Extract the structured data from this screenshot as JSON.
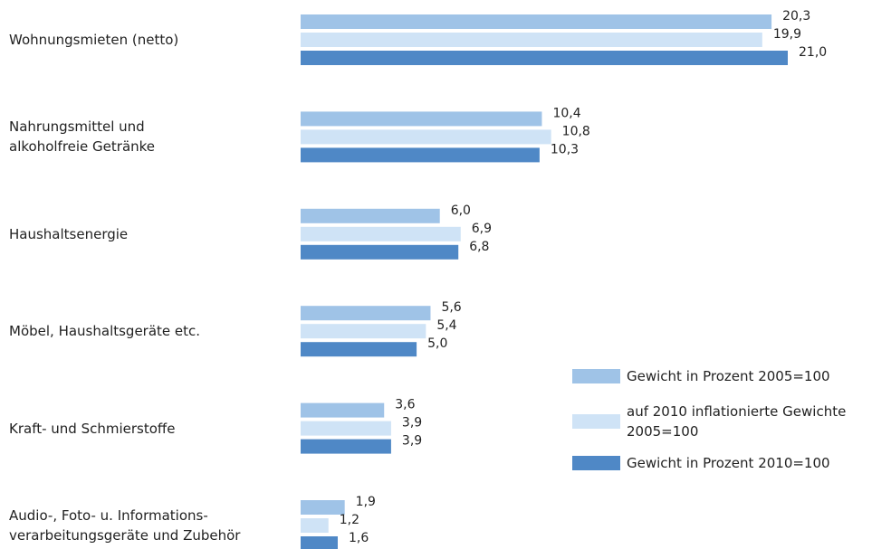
{
  "chart_data": {
    "type": "bar",
    "orientation": "horizontal",
    "categories": [
      "Wohnungsmieten (netto)",
      "Nahrungsmittel und\nalkoholfreie Getränke",
      "Haushaltsenergie",
      "Möbel, Haushaltsgeräte etc.",
      "Kraft- und Schmierstoffe",
      "Audio-, Foto- u. Informations-\nverarbeitungsgeräte und Zubehör"
    ],
    "series": [
      {
        "name": "Gewicht in Prozent 2005=100",
        "color": "#9fc3e7",
        "values": [
          20.3,
          10.4,
          6.0,
          5.6,
          3.6,
          1.9
        ],
        "value_labels": [
          "20,3",
          "10,4",
          "6,0",
          "5,6",
          "3,6",
          "1,9"
        ]
      },
      {
        "name": "auf 2010 inflationierte Gewichte 2005=100",
        "color": "#cfe3f6",
        "values": [
          19.9,
          10.8,
          6.9,
          5.4,
          3.9,
          1.2
        ],
        "value_labels": [
          "19,9",
          "10,8",
          "6,9",
          "5,4",
          "3,9",
          "1,2"
        ]
      },
      {
        "name": "Gewicht in Prozent 2010=100",
        "color": "#4f88c6",
        "values": [
          21.0,
          10.3,
          6.8,
          5.0,
          3.9,
          1.6
        ],
        "value_labels": [
          "21,0",
          "10,3",
          "6,8",
          "5,0",
          "3,9",
          "1,6"
        ]
      }
    ],
    "legend": "lower right"
  }
}
